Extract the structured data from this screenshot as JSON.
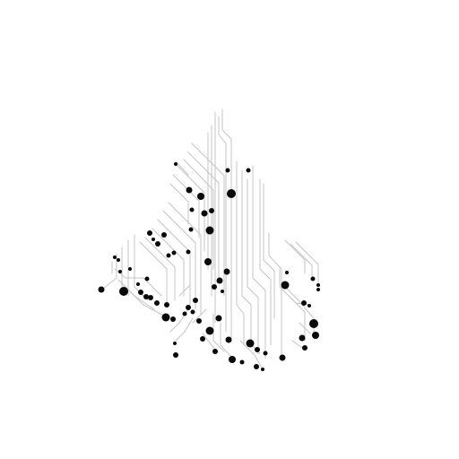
{
  "artwork": {
    "subject": "circuit-board-tree",
    "colors": {
      "background": "#ffffff",
      "trace": "#c4c4c4",
      "node": "#0a0a0a"
    }
  }
}
